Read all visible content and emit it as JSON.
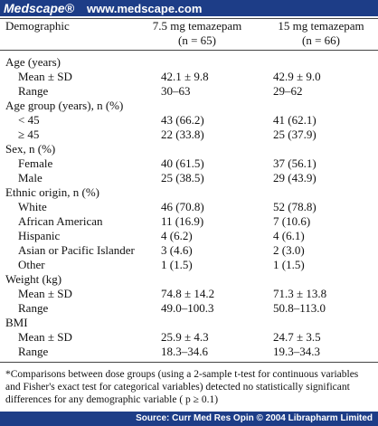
{
  "brand": "Medscape®",
  "url": "www.medscape.com",
  "table": {
    "header": [
      [
        "Demographic"
      ],
      [
        "7.5 mg temazepam",
        "(n = 65)"
      ],
      [
        "15 mg temazepam",
        "(n = 66)"
      ]
    ],
    "sections": [
      {
        "title": "Age (years)",
        "rows": [
          [
            "Mean ± SD",
            "42.1 ± 9.8",
            "42.9 ± 9.0"
          ],
          [
            "Range",
            "30–63",
            "29–62"
          ]
        ]
      },
      {
        "title": "Age group (years), n (%)",
        "rows": [
          [
            "< 45",
            "43 (66.2)",
            "41 (62.1)"
          ],
          [
            "≥ 45",
            "22 (33.8)",
            "25 (37.9)"
          ]
        ]
      },
      {
        "title": "Sex, n (%)",
        "rows": [
          [
            "Female",
            "40 (61.5)",
            "37 (56.1)"
          ],
          [
            "Male",
            "25 (38.5)",
            "29 (43.9)"
          ]
        ]
      },
      {
        "title": "Ethnic origin, n (%)",
        "rows": [
          [
            "White",
            "46 (70.8)",
            "52 (78.8)"
          ],
          [
            "African American",
            "11 (16.9)",
            "7 (10.6)"
          ],
          [
            "Hispanic",
            "4 (6.2)",
            "4 (6.1)"
          ],
          [
            "Asian or Pacific Islander",
            "3 (4.6)",
            "2 (3.0)"
          ],
          [
            "Other",
            "1 (1.5)",
            "1 (1.5)"
          ]
        ]
      },
      {
        "title": "Weight (kg)",
        "rows": [
          [
            "Mean ± SD",
            "74.8 ± 14.2",
            "71.3 ± 13.8"
          ],
          [
            "Range",
            "49.0–100.3",
            "50.8–113.0"
          ]
        ]
      },
      {
        "title": "BMI",
        "rows": [
          [
            "Mean ± SD",
            "25.9 ± 4.3",
            "24.7 ± 3.5"
          ],
          [
            "Range",
            "18.3–34.6",
            "19.3–34.3"
          ]
        ]
      }
    ],
    "footnote": "*Comparisons between dose groups (using a 2-sample t-test for continuous variables and Fisher's exact test for categorical variables) detected no statistically significant differences for any demographic variable ( p ≥ 0.1)"
  },
  "source": "Source: Curr Med Res Opin © 2004 Librapharm Limited"
}
